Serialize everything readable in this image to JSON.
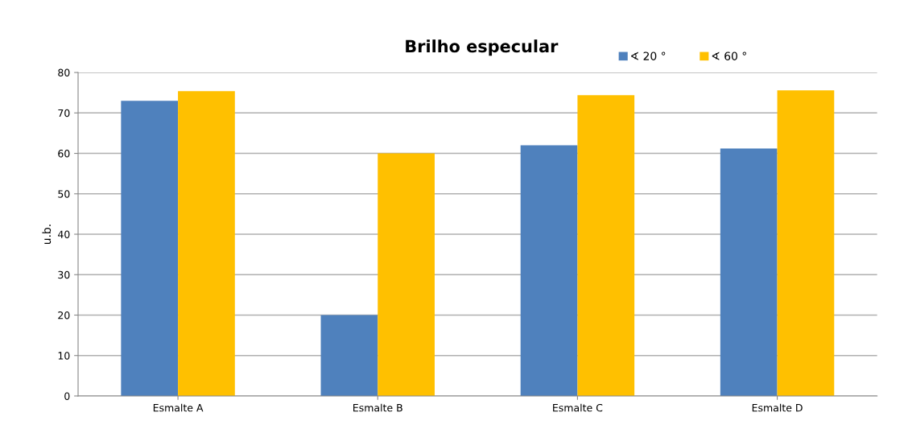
{
  "chart_data": {
    "type": "bar",
    "title": "Brilho especular",
    "ylabel": "u.b.",
    "categories": [
      "Esmalte A",
      "Esmalte B",
      "Esmalte C",
      "Esmalte D"
    ],
    "series": [
      {
        "name": "∢ 20 °",
        "color": "#4f81bd",
        "values": [
          73,
          20,
          62,
          61.2
        ]
      },
      {
        "name": "∢ 60 °",
        "color": "#ffc000",
        "values": [
          75.4,
          60,
          74.4,
          75.6
        ]
      }
    ],
    "ylim": [
      0,
      80
    ],
    "yticks": [
      0,
      10,
      20,
      30,
      40,
      50,
      60,
      70,
      80
    ],
    "grid": "y",
    "legend": "top right"
  }
}
